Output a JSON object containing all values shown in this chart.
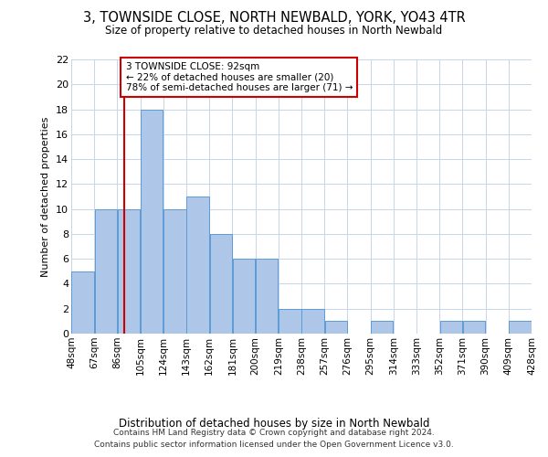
{
  "title": "3, TOWNSIDE CLOSE, NORTH NEWBALD, YORK, YO43 4TR",
  "subtitle": "Size of property relative to detached houses in North Newbald",
  "xlabel": "Distribution of detached houses by size in North Newbald",
  "ylabel": "Number of detached properties",
  "bar_values": [
    5,
    10,
    10,
    18,
    10,
    11,
    8,
    6,
    6,
    2,
    2,
    1,
    0,
    1,
    0,
    0,
    1,
    1,
    0,
    1
  ],
  "bin_edges": [
    48,
    67,
    86,
    105,
    124,
    143,
    162,
    181,
    200,
    219,
    238,
    257,
    276,
    295,
    314,
    333,
    352,
    371,
    390,
    409,
    428
  ],
  "tick_labels": [
    "48sqm",
    "67sqm",
    "86sqm",
    "105sqm",
    "124sqm",
    "143sqm",
    "162sqm",
    "181sqm",
    "200sqm",
    "219sqm",
    "238sqm",
    "257sqm",
    "276sqm",
    "295sqm",
    "314sqm",
    "333sqm",
    "352sqm",
    "371sqm",
    "390sqm",
    "409sqm",
    "428sqm"
  ],
  "bar_color": "#aec6e8",
  "bar_edge_color": "#5b9bd5",
  "property_line_x": 92,
  "property_line_color": "#cc0000",
  "annotation_text": "3 TOWNSIDE CLOSE: 92sqm\n← 22% of detached houses are smaller (20)\n78% of semi-detached houses are larger (71) →",
  "annotation_box_color": "#ffffff",
  "annotation_box_edge": "#cc0000",
  "ylim": [
    0,
    22
  ],
  "yticks": [
    0,
    2,
    4,
    6,
    8,
    10,
    12,
    14,
    16,
    18,
    20,
    22
  ],
  "footer": "Contains HM Land Registry data © Crown copyright and database right 2024.\nContains public sector information licensed under the Open Government Licence v3.0.",
  "background_color": "#ffffff",
  "grid_color": "#c8d4e8",
  "title_fontsize": 10.5,
  "subtitle_fontsize": 8.5,
  "xlabel_fontsize": 8.5,
  "ylabel_fontsize": 8.0,
  "tick_fontsize": 7.5,
  "footer_fontsize": 6.5,
  "annotation_fontsize": 7.5
}
